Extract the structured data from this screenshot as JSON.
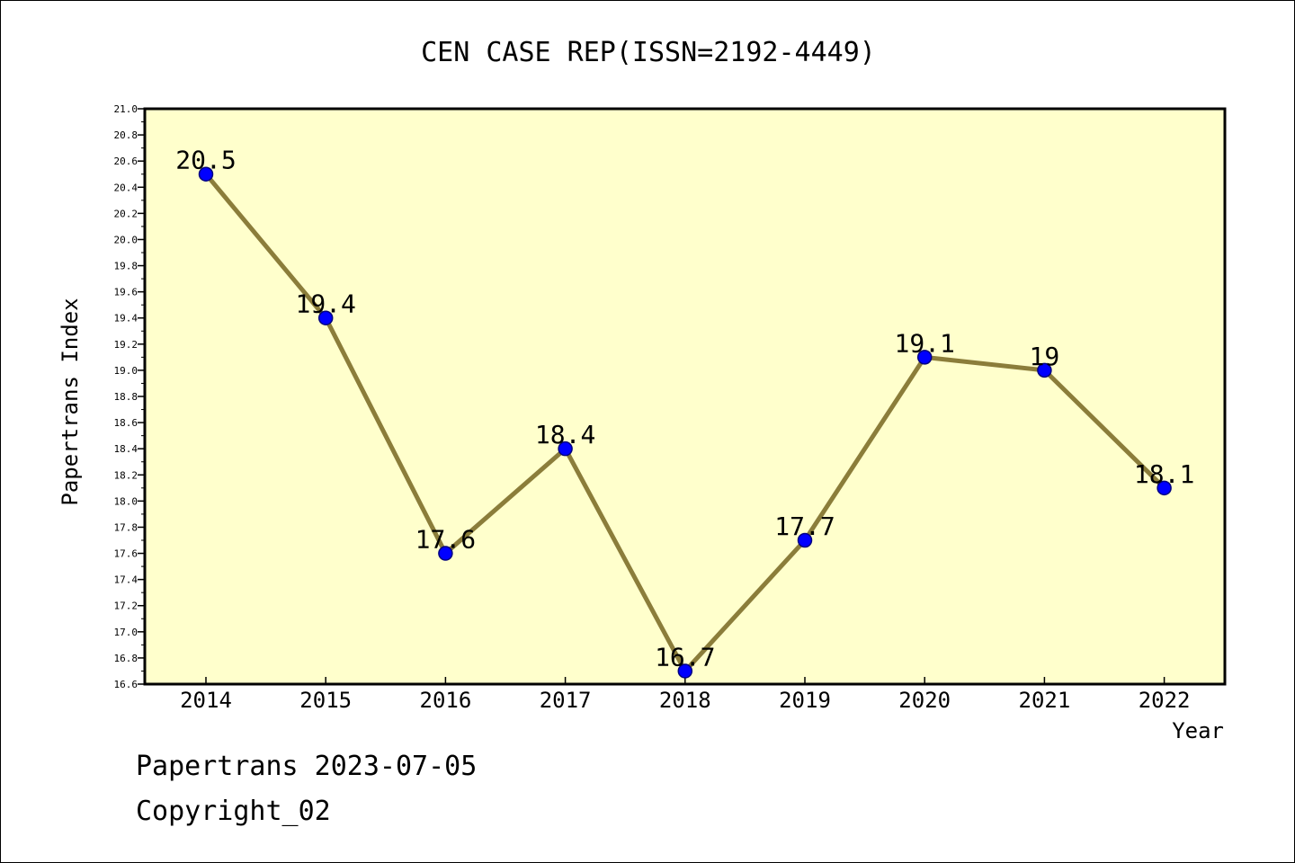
{
  "footer": {
    "line1": "Papertrans 2023-07-05",
    "line2": "Copyright_02"
  },
  "chart_data": {
    "type": "line",
    "title": "CEN CASE REP(ISSN=2192-4449)",
    "xlabel": "Year",
    "ylabel": "Papertrans Index",
    "categories": [
      "2014",
      "2015",
      "2016",
      "2017",
      "2018",
      "2019",
      "2020",
      "2021",
      "2022"
    ],
    "values": [
      20.5,
      19.4,
      17.6,
      18.4,
      16.7,
      17.7,
      19.1,
      19.0,
      18.1
    ],
    "data_labels": [
      "20.5",
      "19.4",
      "17.6",
      "18.4",
      "16.7",
      "17.7",
      "19.1",
      "19",
      "18.1"
    ],
    "ylim": [
      16.6,
      21.0
    ],
    "y_ticks": [
      "16.6",
      "16.8",
      "17.0",
      "17.2",
      "17.4",
      "17.6",
      "17.8",
      "18.0",
      "18.2",
      "18.4",
      "18.6",
      "18.8",
      "19.0",
      "19.2",
      "19.4",
      "19.6",
      "19.8",
      "20.0",
      "20.2",
      "20.4",
      "20.6",
      "20.8",
      "21.0"
    ],
    "grid": false,
    "legend": "none",
    "colors": {
      "plot_background": "#ffffcc",
      "line": "#8b7d3a",
      "marker_fill": "#0000ff",
      "marker_stroke": "#000080"
    }
  }
}
